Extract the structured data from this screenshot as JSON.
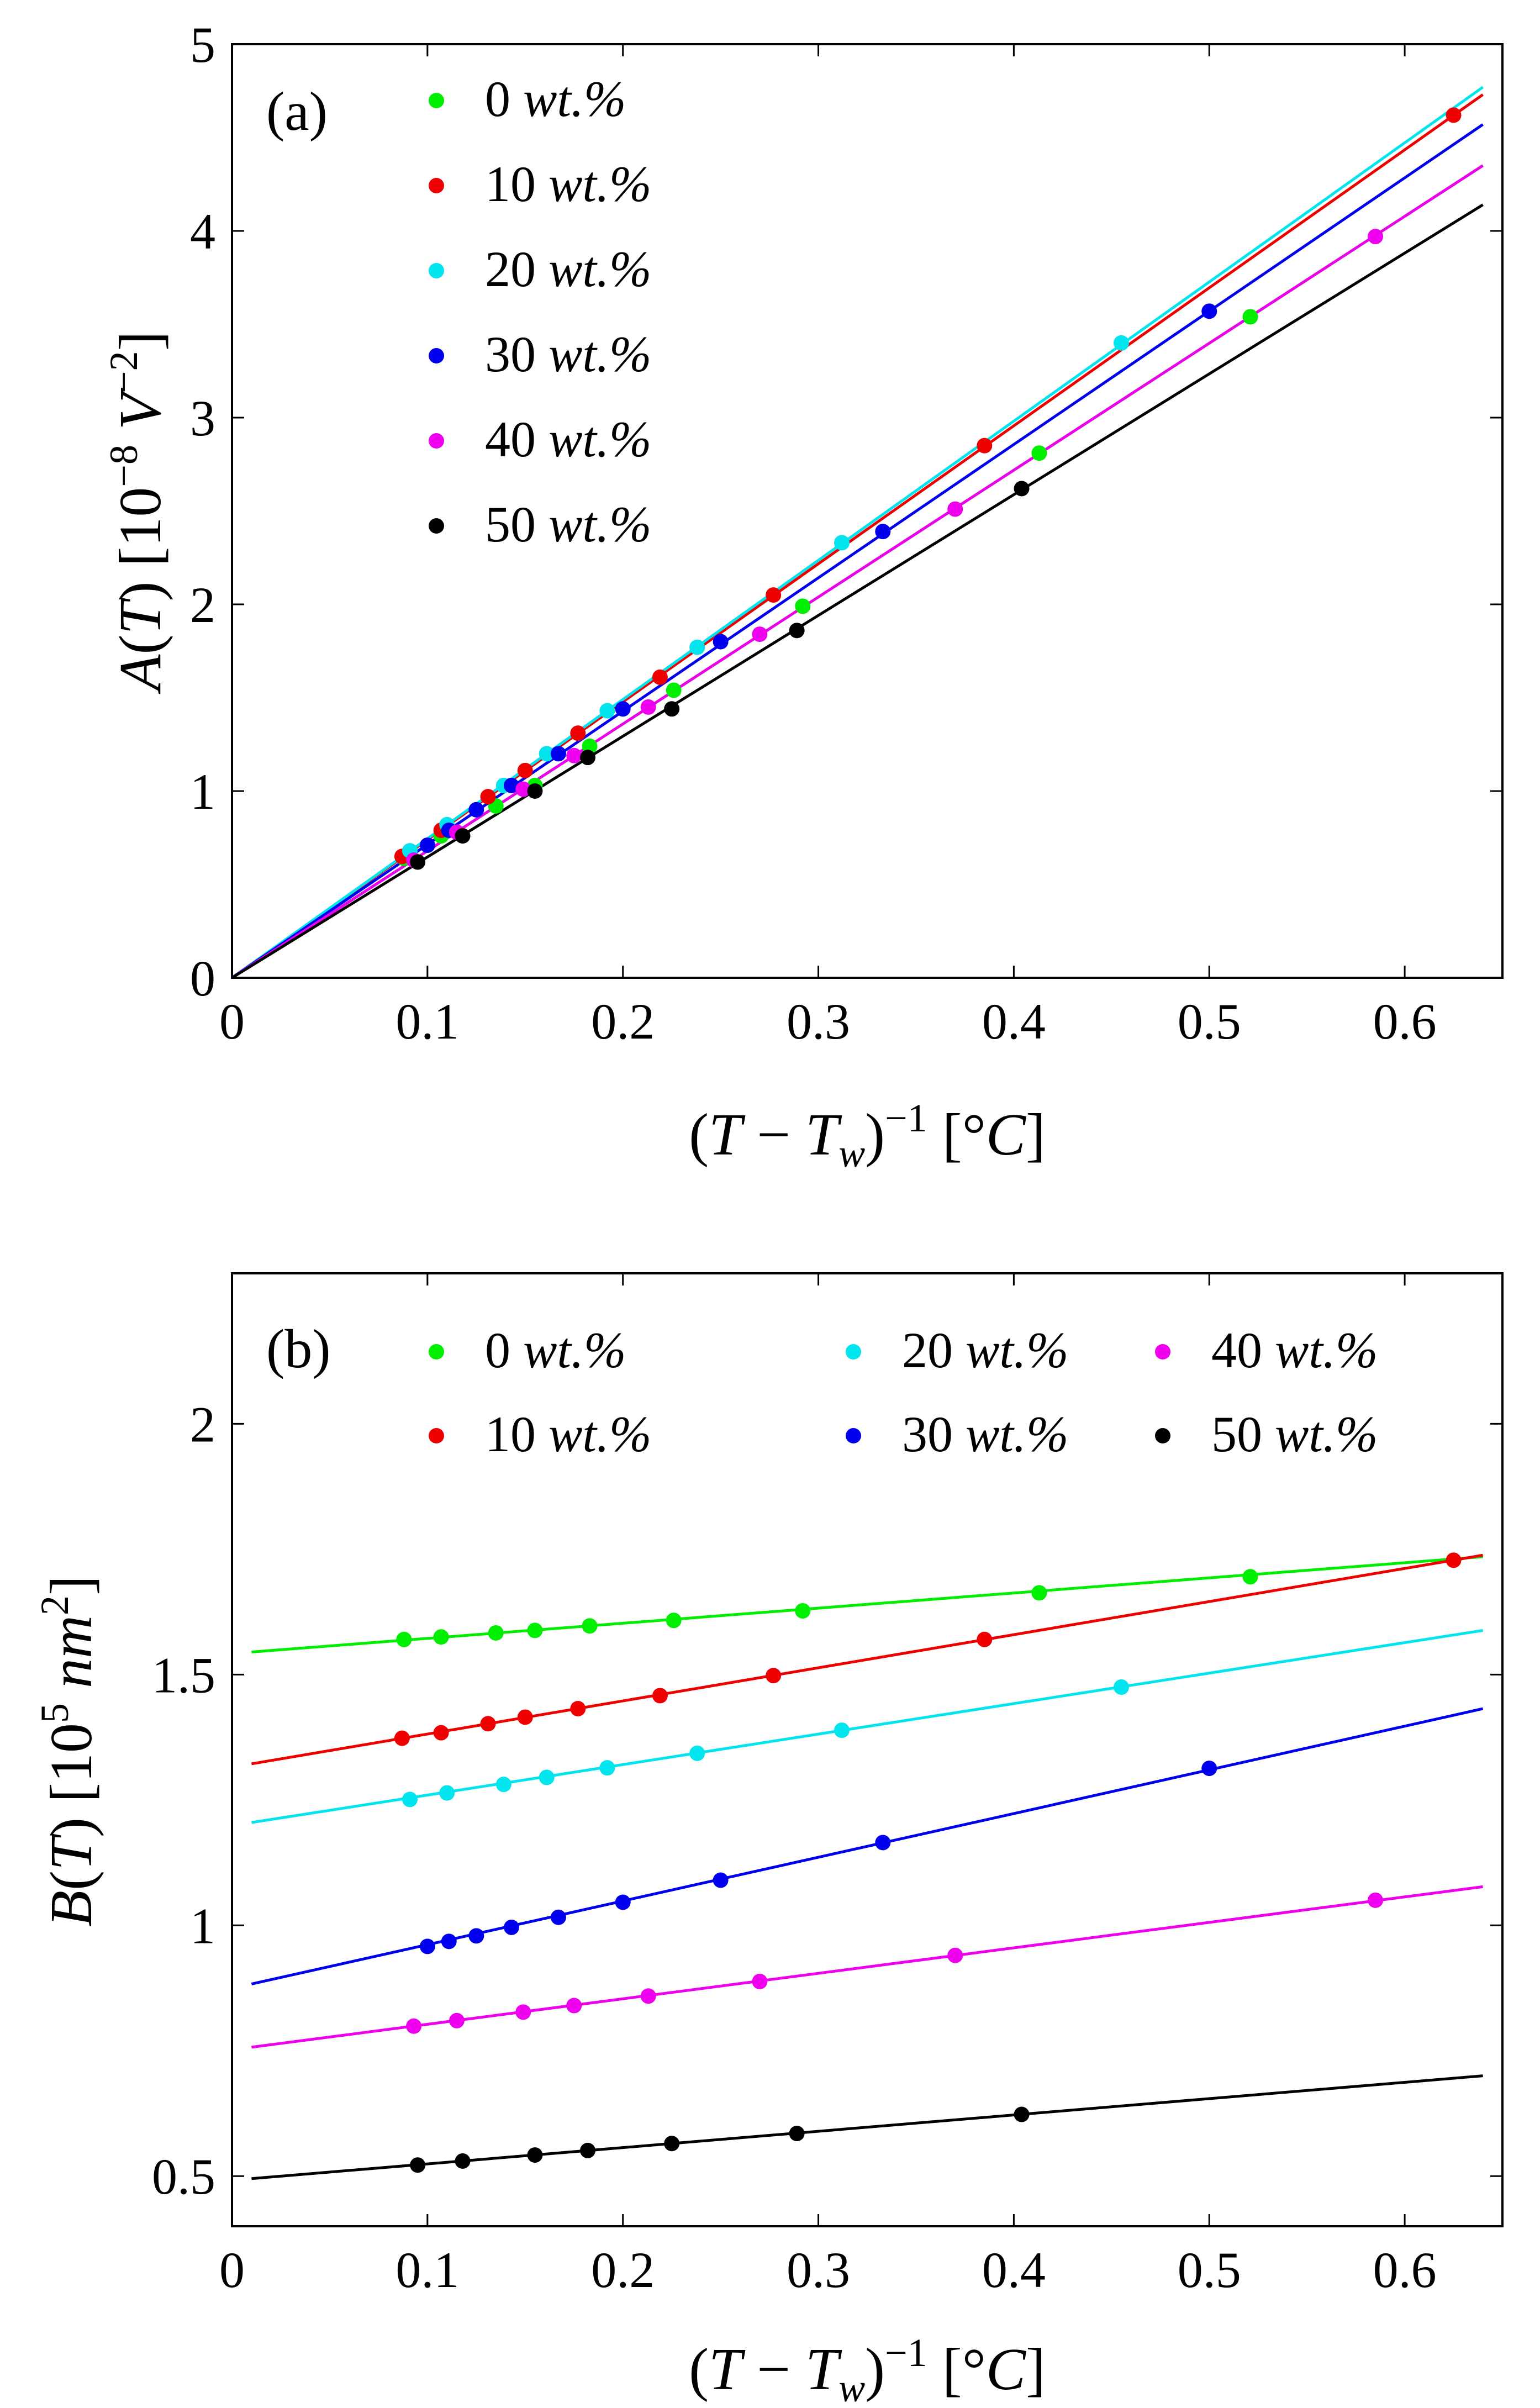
{
  "figure": [
    {
      "panel_label": "(a)",
      "xlabel": "(T − T_w)⁻¹ [°C]",
      "ylabel": "A(T) [10⁻⁸ V⁻²]",
      "xticks": [
        0,
        0.1,
        0.2,
        0.3,
        0.4,
        0.5,
        0.6
      ],
      "xtick_labels": [
        "0",
        "0.1",
        "0.2",
        "0.3",
        "0.4",
        "0.5",
        "0.6"
      ],
      "yticks": [
        0,
        1,
        2,
        3,
        4,
        5
      ],
      "ytick_labels": [
        "0",
        "1",
        "2",
        "3",
        "4",
        "5"
      ]
    },
    {
      "panel_label": "(b)",
      "xlabel": "(T − T_w)⁻¹ [°C]",
      "ylabel": "B(T) [10⁵ nm²]",
      "xticks": [
        0,
        0.1,
        0.2,
        0.3,
        0.4,
        0.5,
        0.6
      ],
      "xtick_labels": [
        "0",
        "0.1",
        "0.2",
        "0.3",
        "0.4",
        "0.5",
        "0.6"
      ],
      "yticks": [
        0.5,
        1,
        1.5,
        2
      ],
      "ytick_labels": [
        "0.5",
        "1",
        "1.5",
        "2"
      ]
    }
  ],
  "chart_data": [
    {
      "type": "scatter",
      "title": "(a)",
      "xlabel": "(T − T_w)⁻¹ [°C]",
      "ylabel": "A(T) [10⁻⁸ V⁻²]",
      "xlim": [
        0,
        0.65
      ],
      "ylim": [
        0,
        5
      ],
      "legend_position": "top-left",
      "series": [
        {
          "name": "0 wt.%",
          "color": "#00ee00",
          "x": [
            0.088,
            0.107,
            0.135,
            0.155,
            0.183,
            0.226,
            0.292,
            0.413,
            0.521
          ],
          "y": [
            0.64,
            0.76,
            0.92,
            1.03,
            1.24,
            1.54,
            1.99,
            2.81,
            3.54
          ],
          "fit": {
            "x": [
              0,
              0.64
            ],
            "y": [
              0,
              4.35
            ]
          }
        },
        {
          "name": "10 wt.%",
          "color": "#ee0000",
          "x": [
            0.087,
            0.107,
            0.131,
            0.15,
            0.177,
            0.219,
            0.277,
            0.385,
            0.625
          ],
          "y": [
            0.65,
            0.79,
            0.97,
            1.11,
            1.31,
            1.61,
            2.05,
            2.85,
            4.62
          ],
          "fit": {
            "x": [
              0,
              0.64
            ],
            "y": [
              0,
              4.73
            ]
          }
        },
        {
          "name": "20 wt.%",
          "color": "#00e5ee",
          "x": [
            0.091,
            0.11,
            0.139,
            0.161,
            0.192,
            0.238,
            0.312,
            0.455
          ],
          "y": [
            0.68,
            0.82,
            1.03,
            1.2,
            1.43,
            1.77,
            2.33,
            3.4
          ],
          "fit": {
            "x": [
              0,
              0.64
            ],
            "y": [
              0,
              4.77
            ]
          }
        },
        {
          "name": "30 wt.%",
          "color": "#0000ee",
          "x": [
            0.1,
            0.111,
            0.125,
            0.143,
            0.167,
            0.2,
            0.25,
            0.333,
            0.5
          ],
          "y": [
            0.71,
            0.79,
            0.9,
            1.03,
            1.2,
            1.44,
            1.8,
            2.39,
            3.57
          ],
          "fit": {
            "x": [
              0,
              0.64
            ],
            "y": [
              0,
              4.57
            ]
          }
        },
        {
          "name": "40 wt.%",
          "color": "#ee00ee",
          "x": [
            0.093,
            0.115,
            0.149,
            0.175,
            0.213,
            0.27,
            0.37,
            0.585
          ],
          "y": [
            0.63,
            0.78,
            1.01,
            1.19,
            1.45,
            1.84,
            2.51,
            3.97
          ],
          "fit": {
            "x": [
              0,
              0.64
            ],
            "y": [
              0,
              4.35
            ]
          }
        },
        {
          "name": "50 wt.%",
          "color": "#000000",
          "x": [
            0.095,
            0.118,
            0.155,
            0.182,
            0.225,
            0.289,
            0.404
          ],
          "y": [
            0.62,
            0.76,
            1.0,
            1.18,
            1.44,
            1.86,
            2.62
          ],
          "fit": {
            "x": [
              0,
              0.64
            ],
            "y": [
              0,
              4.14
            ]
          }
        }
      ]
    },
    {
      "type": "scatter",
      "title": "(b)",
      "xlabel": "(T − T_w)⁻¹ [°C]",
      "ylabel": "B(T) [10⁵ nm²]",
      "xlim": [
        0,
        0.65
      ],
      "ylim": [
        0.4,
        2.3
      ],
      "legend_position": "top",
      "series": [
        {
          "name": "0 wt.%",
          "color": "#00ee00",
          "x": [
            0.088,
            0.107,
            0.135,
            0.155,
            0.183,
            0.226,
            0.292,
            0.413,
            0.521
          ],
          "y": [
            1.57,
            1.575,
            1.583,
            1.588,
            1.597,
            1.608,
            1.627,
            1.663,
            1.695
          ],
          "fit": {
            "x": [
              0.01,
              0.64
            ],
            "y": [
              1.545,
              1.735
            ]
          }
        },
        {
          "name": "10 wt.%",
          "color": "#ee0000",
          "x": [
            0.087,
            0.107,
            0.131,
            0.15,
            0.177,
            0.219,
            0.277,
            0.385,
            0.625
          ],
          "y": [
            1.373,
            1.384,
            1.402,
            1.415,
            1.432,
            1.458,
            1.498,
            1.57,
            1.728
          ],
          "fit": {
            "x": [
              0.01,
              0.64
            ],
            "y": [
              1.322,
              1.738
            ]
          }
        },
        {
          "name": "20 wt.%",
          "color": "#00e5ee",
          "x": [
            0.091,
            0.11,
            0.139,
            0.161,
            0.192,
            0.238,
            0.312,
            0.455
          ],
          "y": [
            1.251,
            1.264,
            1.281,
            1.295,
            1.314,
            1.343,
            1.389,
            1.475
          ],
          "fit": {
            "x": [
              0.01,
              0.64
            ],
            "y": [
              1.205,
              1.588
            ]
          }
        },
        {
          "name": "30 wt.%",
          "color": "#0000ee",
          "x": [
            0.1,
            0.111,
            0.125,
            0.143,
            0.167,
            0.2,
            0.25,
            0.333,
            0.5
          ],
          "y": [
            0.958,
            0.968,
            0.979,
            0.996,
            1.016,
            1.046,
            1.09,
            1.165,
            1.313
          ],
          "fit": {
            "x": [
              0.01,
              0.64
            ],
            "y": [
              0.883,
              1.432
            ]
          }
        },
        {
          "name": "40 wt.%",
          "color": "#ee00ee",
          "x": [
            0.093,
            0.115,
            0.149,
            0.175,
            0.213,
            0.27,
            0.37,
            0.585
          ],
          "y": [
            0.799,
            0.81,
            0.827,
            0.84,
            0.859,
            0.888,
            0.94,
            1.05
          ],
          "fit": {
            "x": [
              0.01,
              0.64
            ],
            "y": [
              0.757,
              1.077
            ]
          }
        },
        {
          "name": "50 wt.%",
          "color": "#000000",
          "x": [
            0.095,
            0.118,
            0.155,
            0.182,
            0.225,
            0.289,
            0.404
          ],
          "y": [
            0.522,
            0.53,
            0.542,
            0.551,
            0.565,
            0.585,
            0.623
          ],
          "fit": {
            "x": [
              0.01,
              0.64
            ],
            "y": [
              0.495,
              0.7
            ]
          }
        }
      ]
    }
  ]
}
